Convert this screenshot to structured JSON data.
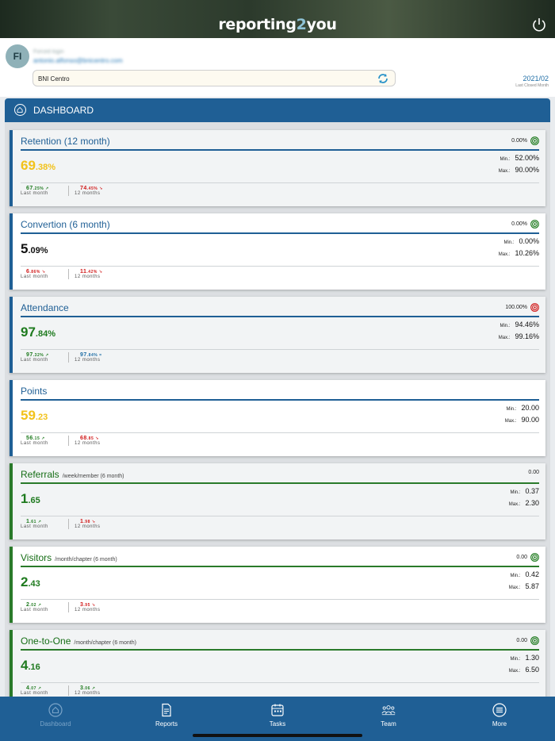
{
  "header": {
    "logo_part1": "reporting",
    "logo_part2": "2",
    "logo_part3": "you"
  },
  "user": {
    "initials": "FI",
    "name": "Forced login",
    "email": "antonio.alfonso@bnicentro.com",
    "chapter": "BNI Centro",
    "month_value": "2021/02",
    "month_label": "Last Closed Month"
  },
  "dashboard": {
    "title": "DASHBOARD"
  },
  "colors": {
    "brand": "#1f5f95",
    "green": "#1e7a1e",
    "yellow": "#f2c21b",
    "red": "#d11a1a"
  },
  "cards": [
    {
      "title": "Retention (12 month)",
      "sub": "",
      "target": "0.00%",
      "target_icon": "target-green-icon",
      "big_int": "69",
      "big_dec": ".38%",
      "min_label": "Min.:",
      "min": "52.00%",
      "max_label": "Max.:",
      "max": "90.00%",
      "last_int": "67",
      "last_dec": ".25% ↗",
      "last_label": "Last month",
      "year_int": "74",
      "year_dec": ".45% ↘",
      "year_label": "12 months"
    },
    {
      "title": "Convertion (6 month)",
      "sub": "",
      "target": "0.00%",
      "target_icon": "target-green-icon",
      "big_int": "5",
      "big_dec": ".09%",
      "min_label": "Min.:",
      "min": "0.00%",
      "max_label": "Max.:",
      "max": "10.26%",
      "last_int": "6",
      "last_dec": ".86% ↘",
      "last_label": "Last month",
      "year_int": "11",
      "year_dec": ".42% ↘",
      "year_label": "12 months"
    },
    {
      "title": "Attendance",
      "sub": "",
      "target": "100.00%",
      "target_icon": "target-red-icon",
      "big_int": "97",
      "big_dec": ".84%",
      "min_label": "Min.:",
      "min": "94.46%",
      "max_label": "Max.:",
      "max": "99.16%",
      "last_int": "97",
      "last_dec": ".32% ↗",
      "last_label": "Last month",
      "year_int": "97",
      "year_dec": ".84% =",
      "year_label": "12 months"
    },
    {
      "title": "Points",
      "sub": "",
      "target": "",
      "target_icon": "",
      "big_int": "59",
      "big_dec": ".23",
      "min_label": "Min.:",
      "min": "20.00",
      "max_label": "Max.:",
      "max": "90.00",
      "last_int": "56",
      "last_dec": ".15 ↗",
      "last_label": "Last month",
      "year_int": "68",
      "year_dec": ".85 ↘",
      "year_label": "12 months"
    },
    {
      "title": "Referrals",
      "sub": "/week/member (6 month)",
      "target": "0.00",
      "target_icon": "",
      "big_int": "1",
      "big_dec": ".65",
      "min_label": "Min.:",
      "min": "0.37",
      "max_label": "Max.:",
      "max": "2.30",
      "last_int": "1",
      "last_dec": ".61 ↗",
      "last_label": "Last month",
      "year_int": "1",
      "year_dec": ".98 ↘",
      "year_label": "12 months"
    },
    {
      "title": "Visitors",
      "sub": "/month/chapter (6 month)",
      "target": "0.00",
      "target_icon": "target-green-icon",
      "big_int": "2",
      "big_dec": ".43",
      "min_label": "Min.:",
      "min": "0.42",
      "max_label": "Max.:",
      "max": "5.87",
      "last_int": "2",
      "last_dec": ".02 ↗",
      "last_label": "Last month",
      "year_int": "3",
      "year_dec": ".95 ↘",
      "year_label": "12 months"
    },
    {
      "title": "One-to-One",
      "sub": "/month/chapter (6 month)",
      "target": "0.00",
      "target_icon": "target-green-icon",
      "big_int": "4",
      "big_dec": ".16",
      "min_label": "Min.:",
      "min": "1.30",
      "max_label": "Max.:",
      "max": "6.50",
      "last_int": "4",
      "last_dec": ".07 ↗",
      "last_label": "Last month",
      "year_int": "3",
      "year_dec": ".06 ↗",
      "year_label": "12 months"
    }
  ],
  "nav": [
    {
      "label": "Dashboard",
      "icon": "home-icon"
    },
    {
      "label": "Reports",
      "icon": "document-icon"
    },
    {
      "label": "Tasks",
      "icon": "calendar-icon"
    },
    {
      "label": "Team",
      "icon": "team-icon"
    },
    {
      "label": "More",
      "icon": "menu-icon"
    }
  ]
}
